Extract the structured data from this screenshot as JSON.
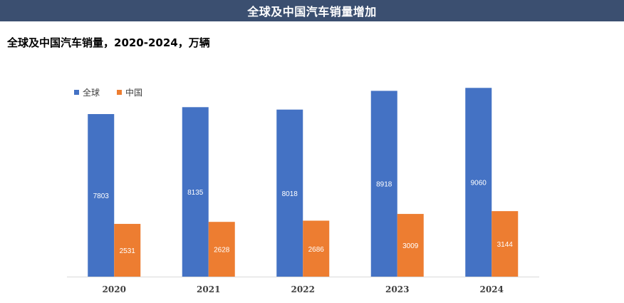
{
  "header": {
    "banner_title": "全球及中国汽车销量增加"
  },
  "chart_data": {
    "type": "bar",
    "title": "全球及中国汽车销量，2020-2024，万辆",
    "categories": [
      "2020",
      "2021",
      "2022",
      "2023",
      "2024"
    ],
    "series": [
      {
        "name": "全球",
        "color": "#4472c4",
        "values": [
          7803,
          8135,
          8018,
          8918,
          9060
        ]
      },
      {
        "name": "中国",
        "color": "#ed7d31",
        "values": [
          2531,
          2628,
          2686,
          3009,
          3144
        ]
      }
    ],
    "xlabel": "",
    "ylabel": "",
    "ylim": [
      0,
      10000
    ],
    "grid": false,
    "legend_position": "top-left",
    "data_labels": true
  }
}
